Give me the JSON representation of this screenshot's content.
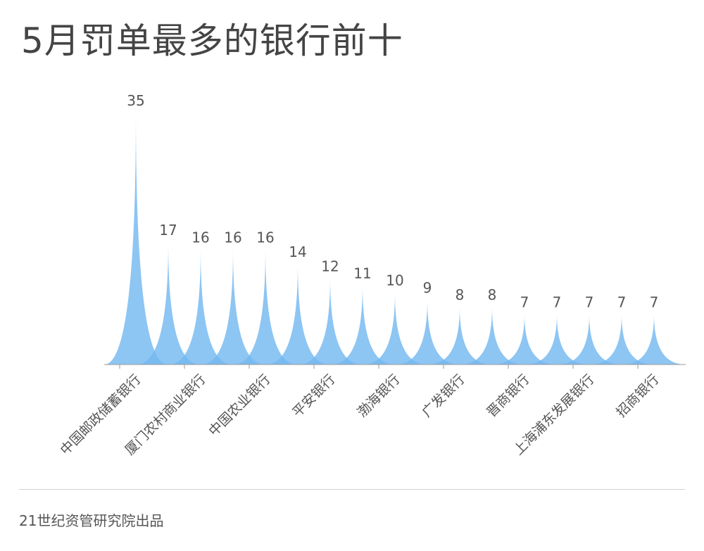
{
  "title": "5月罚单最多的银行前十",
  "source": "21世纪资管研究院出品",
  "colors": {
    "fill": "#74b8f0",
    "axis": "#9a9a9a",
    "label": "#555555"
  },
  "chart_data": {
    "type": "bar",
    "shape": "pictorial-spike",
    "title": "5月罚单最多的银行前十",
    "xlabel": "",
    "ylabel": "",
    "grid": false,
    "ylim": [
      0,
      35
    ],
    "categories": [
      "中国邮政储蓄银行",
      "",
      "厦门农村商业银行",
      "",
      "中国农业银行",
      "",
      "平安银行",
      "",
      "渤海银行",
      "",
      "广发银行",
      "",
      "晋商银行",
      "",
      "上海浦东发展银行",
      "",
      "招商银行"
    ],
    "values": [
      35,
      17,
      16,
      16,
      16,
      14,
      12,
      11,
      10,
      9,
      8,
      8,
      7,
      7,
      7,
      7,
      7
    ]
  }
}
